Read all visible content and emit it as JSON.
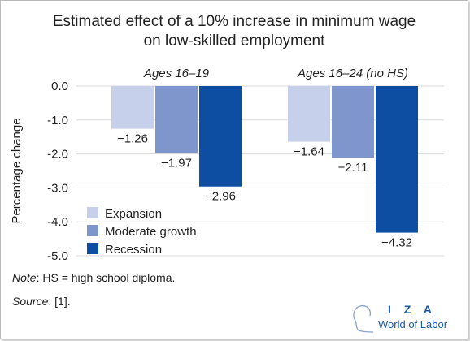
{
  "title_lines": [
    "Estimated effect of a 10% increase in minimum wage",
    "on low-skilled employment"
  ],
  "note": {
    "label": "Note",
    "text": ": HS = high school diploma."
  },
  "source": {
    "label": "Source",
    "text": ": [1]."
  },
  "logo": {
    "name": "I Z A",
    "tagline": "World of Labor"
  },
  "colors": {
    "expansion": "#c7d0ea",
    "moderate": "#7f96cd",
    "recession": "#0d4ea2",
    "grid": "#d9d9d9"
  },
  "chart_data": {
    "type": "bar",
    "ylabel": "Percentage change",
    "ylim": [
      -5.0,
      0.0
    ],
    "yticks": [
      "0.0",
      "-1.0",
      "-2.0",
      "-3.0",
      "-4.0",
      "-5.0"
    ],
    "ytick_values": [
      0,
      -1,
      -2,
      -3,
      -4,
      -5
    ],
    "grid": true,
    "legend_position": "bottom-left",
    "groups": [
      "Ages 16–19",
      "Ages 16–24 (no HS)"
    ],
    "series": [
      {
        "name": "Expansion",
        "color_key": "expansion",
        "values": [
          -1.26,
          -1.64
        ],
        "labels": [
          "−1.26",
          "−1.64"
        ]
      },
      {
        "name": "Moderate growth",
        "color_key": "moderate",
        "values": [
          -1.97,
          -2.11
        ],
        "labels": [
          "−1.97",
          "−2.11"
        ]
      },
      {
        "name": "Recession",
        "color_key": "recession",
        "values": [
          -2.96,
          -4.32
        ],
        "labels": [
          "−2.96",
          "−4.32"
        ]
      }
    ]
  }
}
